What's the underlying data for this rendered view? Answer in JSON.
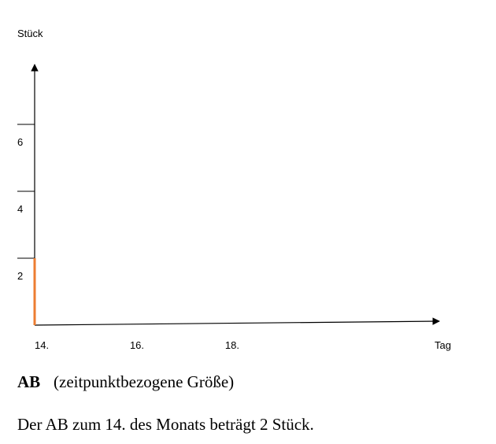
{
  "chart_data": {
    "type": "bar",
    "y_label": "Stück",
    "x_label": "Tag",
    "x": [
      14
    ],
    "values": [
      2
    ],
    "color": "#ed7d31",
    "xlim": [
      14,
      22.5
    ],
    "xticks": [
      {
        "value": 14,
        "label": "14."
      },
      {
        "value": 16,
        "label": "16."
      },
      {
        "value": 18,
        "label": "18."
      }
    ],
    "ylim": [
      0,
      8
    ],
    "yticks": [
      2,
      4,
      6
    ],
    "legend_label": "AB",
    "legend_color": "#f6b21c",
    "legend_text": "(zeitpunktbezogene Größe)",
    "note": "Der AB zum 14. des Monats beträgt 2 Stück."
  }
}
